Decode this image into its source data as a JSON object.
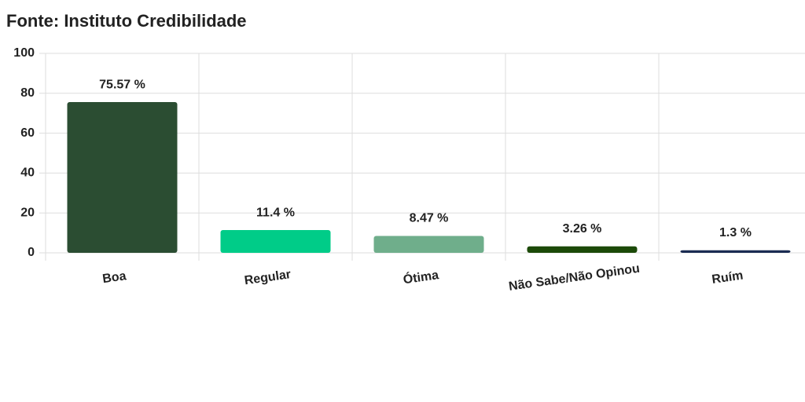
{
  "chart_data": {
    "type": "bar",
    "title": "Fonte: Instituto Credibilidade",
    "categories": [
      "Boa",
      "Regular",
      "Ótima",
      "Não Sabe/Não Opinou",
      "Ruím"
    ],
    "values": [
      75.57,
      11.4,
      8.47,
      3.26,
      1.3
    ],
    "value_labels": [
      "75.57 %",
      "11.4 %",
      "8.47 %",
      "3.26 %",
      "1.3 %"
    ],
    "colors": [
      "#2b4d32",
      "#00cc88",
      "#6fae8b",
      "#1c4a08",
      "#1a2b52"
    ],
    "ylim": [
      0,
      100
    ],
    "yticks": [
      0,
      20,
      40,
      60,
      80,
      100
    ],
    "grid": true
  }
}
